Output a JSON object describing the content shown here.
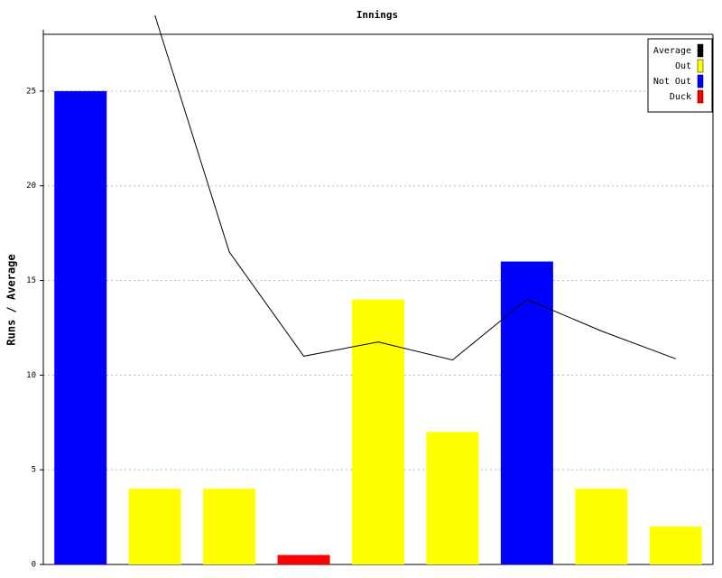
{
  "chart_data": {
    "type": "bar",
    "title": "Innings",
    "y_label": "Runs / Average",
    "categories": [
      null,
      null,
      null,
      null,
      null,
      null,
      null,
      null,
      null
    ],
    "ylim": [
      0,
      28
    ],
    "yticks": [
      0,
      5,
      10,
      15,
      20,
      25
    ],
    "grid": true,
    "legend": "top-right",
    "series": [
      {
        "name": "Average",
        "type": "line",
        "color": "#000000",
        "values": [
          null,
          29,
          16.5,
          11,
          11.75,
          10.8,
          14,
          12.33,
          10.86
        ]
      },
      {
        "name": "Out",
        "type": "bar",
        "color": "#ffff00",
        "values": [
          null,
          4,
          4,
          null,
          14,
          7,
          null,
          4,
          2
        ]
      },
      {
        "name": "Not Out",
        "type": "bar",
        "color": "#0000ff",
        "values": [
          25,
          null,
          null,
          null,
          null,
          null,
          16,
          null,
          null
        ]
      },
      {
        "name": "Duck",
        "type": "bar",
        "color": "#ff0000",
        "values": [
          null,
          null,
          null,
          0.5,
          null,
          null,
          null,
          null,
          null
        ]
      }
    ]
  }
}
